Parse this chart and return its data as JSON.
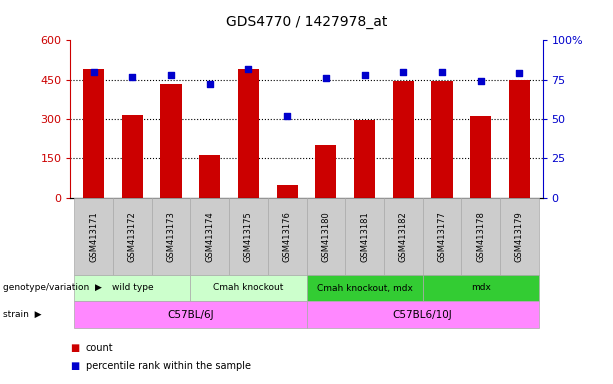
{
  "title": "GDS4770 / 1427978_at",
  "samples": [
    "GSM413171",
    "GSM413172",
    "GSM413173",
    "GSM413174",
    "GSM413175",
    "GSM413176",
    "GSM413180",
    "GSM413181",
    "GSM413182",
    "GSM413177",
    "GSM413178",
    "GSM413179"
  ],
  "counts": [
    490,
    315,
    435,
    163,
    490,
    50,
    200,
    298,
    445,
    445,
    312,
    450
  ],
  "percentiles": [
    80,
    77,
    78,
    72,
    82,
    52,
    76,
    78,
    80,
    80,
    74,
    79
  ],
  "ylim_left": [
    0,
    600
  ],
  "ylim_right": [
    0,
    100
  ],
  "yticks_left": [
    0,
    150,
    300,
    450,
    600
  ],
  "yticks_right": [
    0,
    25,
    50,
    75,
    100
  ],
  "ytick_labels_left": [
    "0",
    "150",
    "300",
    "450",
    "600"
  ],
  "ytick_labels_right": [
    "0",
    "25",
    "50",
    "75",
    "100%"
  ],
  "bar_color": "#cc0000",
  "dot_color": "#0000cc",
  "genotype_groups": [
    {
      "label": "wild type",
      "start": 0,
      "end": 3,
      "color": "#ccffcc"
    },
    {
      "label": "Cmah knockout",
      "start": 3,
      "end": 6,
      "color": "#ccffcc"
    },
    {
      "label": "Cmah knockout, mdx",
      "start": 6,
      "end": 9,
      "color": "#33cc33"
    },
    {
      "label": "mdx",
      "start": 9,
      "end": 12,
      "color": "#33cc33"
    }
  ],
  "strain_groups": [
    {
      "label": "C57BL/6J",
      "start": 0,
      "end": 6,
      "color": "#ff88ff"
    },
    {
      "label": "C57BL6/10J",
      "start": 6,
      "end": 12,
      "color": "#ff88ff"
    }
  ],
  "legend_items": [
    {
      "label": "count",
      "color": "#cc0000"
    },
    {
      "label": "percentile rank within the sample",
      "color": "#0000cc"
    }
  ],
  "left_label_color": "#cc0000",
  "right_label_color": "#0000cc",
  "bg_color": "#ffffff",
  "xtick_bg": "#cccccc",
  "xtick_border": "#aaaaaa"
}
